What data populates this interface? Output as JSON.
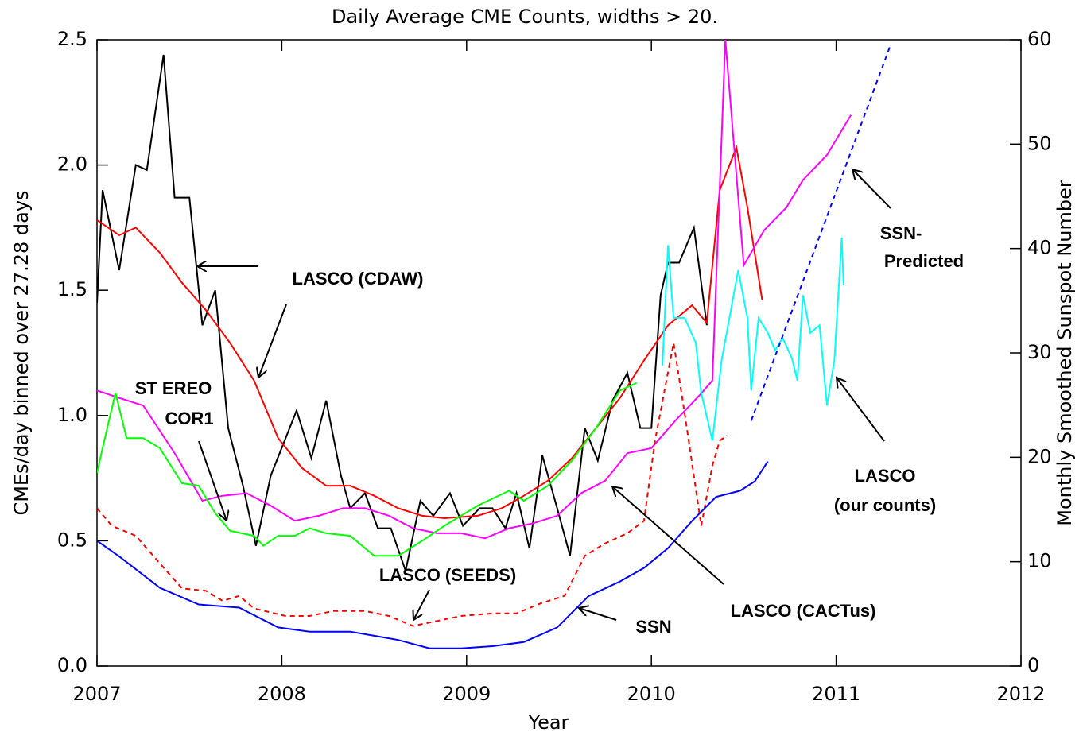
{
  "chart_data": {
    "type": "line",
    "title": "Daily Average CME Counts, widths > 20.",
    "x_label": "Year",
    "y_label": "CMEs/day binned over 27.28 days",
    "y2_label": "Monthly Smoothed Sunspot Number",
    "xlim": [
      2007,
      2012
    ],
    "xticks": [
      2007,
      2008,
      2009,
      2010,
      2011,
      2012
    ],
    "ylim": [
      0,
      2.5
    ],
    "yticks": [
      {
        "value": 0,
        "label": "0.0"
      },
      0.5,
      {
        "value": 1,
        "label": "1.0"
      },
      1.5,
      {
        "value": 2,
        "label": "2.0"
      },
      2.5
    ],
    "y2lim": [
      0,
      60
    ],
    "y2ticks": [
      0,
      10,
      20,
      30,
      40,
      50,
      60
    ],
    "series": [
      {
        "color": "#000000",
        "x": [
          2007.0,
          2007.03,
          2007.12,
          2007.21,
          2007.27,
          2007.36,
          2007.42,
          2007.5,
          2007.57,
          2007.64,
          2007.71,
          2007.79,
          2007.86,
          2007.94,
          2008.08,
          2008.16,
          2008.24,
          2008.32,
          2008.37,
          2008.45,
          2008.52,
          2008.59,
          2008.67,
          2008.75,
          2008.82,
          2008.91,
          2008.98,
          2009.07,
          2009.14,
          2009.21,
          2009.27,
          2009.34,
          2009.41,
          2009.49,
          2009.56,
          2009.64,
          2009.71,
          2009.79,
          2009.87,
          2009.94,
          2010.0,
          2010.05,
          2010.09,
          2010.15,
          2010.23,
          2010.3
        ],
        "values": [
          1.45,
          1.9,
          1.58,
          2.0,
          1.98,
          2.44,
          1.87,
          1.87,
          1.36,
          1.5,
          0.95,
          0.72,
          0.48,
          0.76,
          1.02,
          0.83,
          1.06,
          0.76,
          0.63,
          0.69,
          0.55,
          0.55,
          0.38,
          0.66,
          0.6,
          0.69,
          0.56,
          0.63,
          0.63,
          0.55,
          0.69,
          0.47,
          0.84,
          0.63,
          0.44,
          0.95,
          0.82,
          1.06,
          1.17,
          0.95,
          0.95,
          1.48,
          1.61,
          1.61,
          1.75,
          1.36
        ]
      },
      {
        "color": "#ff0000",
        "x": [
          2007.0,
          2007.12,
          2007.21,
          2007.34,
          2007.46,
          2007.59,
          2007.72,
          2007.85,
          2007.98,
          2008.11,
          2008.24,
          2008.37,
          2008.5,
          2008.63,
          2008.76,
          2008.88,
          2009.06,
          2009.19,
          2009.31,
          2009.44,
          2009.57,
          2009.7,
          2009.83,
          2009.96,
          2010.09,
          2010.22,
          2010.3,
          2010.37,
          2010.46,
          2010.52,
          2010.6
        ],
        "values": [
          1.78,
          1.72,
          1.75,
          1.65,
          1.53,
          1.42,
          1.29,
          1.14,
          0.91,
          0.79,
          0.72,
          0.72,
          0.68,
          0.63,
          0.6,
          0.59,
          0.6,
          0.63,
          0.68,
          0.74,
          0.83,
          0.95,
          1.07,
          1.22,
          1.36,
          1.44,
          1.37,
          1.9,
          2.07,
          1.83,
          1.46
        ]
      },
      {
        "color": "#ff00ff",
        "x": [
          2007.0,
          2007.12,
          2007.25,
          2007.42,
          2007.57,
          2007.68,
          2007.81,
          2007.94,
          2008.07,
          2008.2,
          2008.33,
          2008.45,
          2008.58,
          2008.71,
          2008.84,
          2008.97,
          2009.1,
          2009.23,
          2009.36,
          2009.49,
          2009.62,
          2009.75,
          2009.87,
          2010.0,
          2010.13,
          2010.26,
          2010.33,
          2010.4,
          2010.5,
          2010.61,
          2010.73,
          2010.82,
          2010.95,
          2011.08
        ],
        "values": [
          1.1,
          1.07,
          1.04,
          0.85,
          0.66,
          0.68,
          0.69,
          0.64,
          0.58,
          0.6,
          0.63,
          0.63,
          0.6,
          0.55,
          0.53,
          0.53,
          0.51,
          0.55,
          0.57,
          0.6,
          0.69,
          0.74,
          0.85,
          0.87,
          0.98,
          1.08,
          1.14,
          2.5,
          1.6,
          1.74,
          1.83,
          1.94,
          2.04,
          2.2
        ]
      },
      {
        "color": "#00ff00",
        "x": [
          2007.0,
          2007.03,
          2007.1,
          2007.16,
          2007.25,
          2007.34,
          2007.46,
          2007.55,
          2007.64,
          2007.72,
          2007.85,
          2007.9,
          2007.98,
          2008.07,
          2008.15,
          2008.24,
          2008.37,
          2008.5,
          2008.63,
          2008.76,
          2008.88,
          2009.06,
          2009.23,
          2009.31,
          2009.44,
          2009.57,
          2009.7,
          2009.83,
          2009.92
        ],
        "values": [
          0.77,
          0.87,
          1.09,
          0.91,
          0.91,
          0.87,
          0.73,
          0.72,
          0.61,
          0.54,
          0.52,
          0.48,
          0.52,
          0.52,
          0.55,
          0.53,
          0.52,
          0.44,
          0.44,
          0.5,
          0.56,
          0.64,
          0.7,
          0.66,
          0.72,
          0.82,
          0.95,
          1.1,
          1.13
        ]
      },
      {
        "color": "#ff0000",
        "dash": true,
        "x": [
          2007.0,
          2007.08,
          2007.21,
          2007.34,
          2007.46,
          2007.59,
          2007.68,
          2007.77,
          2007.85,
          2008.02,
          2008.15,
          2008.28,
          2008.45,
          2008.58,
          2008.71,
          2008.84,
          2008.97,
          2009.14,
          2009.27,
          2009.4,
          2009.53,
          2009.64,
          2009.75,
          2009.87,
          2009.96,
          2010.02,
          2010.12,
          2010.18,
          2010.27,
          2010.33,
          2010.37,
          2010.41
        ],
        "values": [
          0.63,
          0.56,
          0.52,
          0.41,
          0.31,
          0.3,
          0.26,
          0.28,
          0.23,
          0.2,
          0.2,
          0.22,
          0.22,
          0.2,
          0.16,
          0.18,
          0.2,
          0.21,
          0.21,
          0.25,
          0.28,
          0.44,
          0.49,
          0.53,
          0.58,
          0.9,
          1.29,
          1.01,
          0.56,
          0.8,
          0.9,
          0.92
        ]
      },
      {
        "color": "#00ffff",
        "x": [
          2010.06,
          2010.09,
          2010.12,
          2010.18,
          2010.24,
          2010.27,
          2010.33,
          2010.38,
          2010.47,
          2010.52,
          2010.54,
          2010.58,
          2010.63,
          2010.67,
          2010.71,
          2010.76,
          2010.79,
          2010.82,
          2010.86,
          2010.91,
          2010.95,
          2010.99,
          2011.03,
          2011.04
        ],
        "values": [
          1.2,
          1.68,
          1.39,
          1.39,
          1.29,
          1.09,
          0.9,
          1.22,
          1.58,
          1.39,
          1.1,
          1.39,
          1.33,
          1.26,
          1.31,
          1.23,
          1.14,
          1.48,
          1.33,
          1.36,
          1.04,
          1.22,
          1.71,
          1.52
        ]
      },
      {
        "color": "#0000ff",
        "axis": "y2",
        "x": [
          2007.0,
          2007.12,
          2007.34,
          2007.55,
          2007.77,
          2007.98,
          2008.15,
          2008.37,
          2008.5,
          2008.63,
          2008.8,
          2008.97,
          2009.14,
          2009.31,
          2009.49,
          2009.66,
          2009.83,
          2009.96,
          2010.09,
          2010.22,
          2010.35,
          2010.48,
          2010.56,
          2010.63
        ],
        "values": [
          12.0,
          10.5,
          7.5,
          5.9,
          5.6,
          3.7,
          3.3,
          3.3,
          2.9,
          2.5,
          1.7,
          1.7,
          1.9,
          2.3,
          3.7,
          6.7,
          8.1,
          9.4,
          11.3,
          13.9,
          16.2,
          16.8,
          17.7,
          19.6
        ]
      },
      {
        "color": "#0000ff",
        "axis": "y2",
        "dash": true,
        "x": [
          2010.54,
          2011.29
        ],
        "values": [
          23.5,
          59.3
        ]
      }
    ],
    "annotations": [
      [
        "LASCO (CDAW)"
      ],
      [
        "ST EREO",
        "COR1"
      ],
      [
        "LASCO (SEEDS)"
      ],
      [
        "SSN"
      ],
      [
        "LASCO (CACTus)"
      ],
      [
        "SSN-",
        "Predicted"
      ],
      [
        "LASCO",
        "(our counts)"
      ]
    ]
  }
}
